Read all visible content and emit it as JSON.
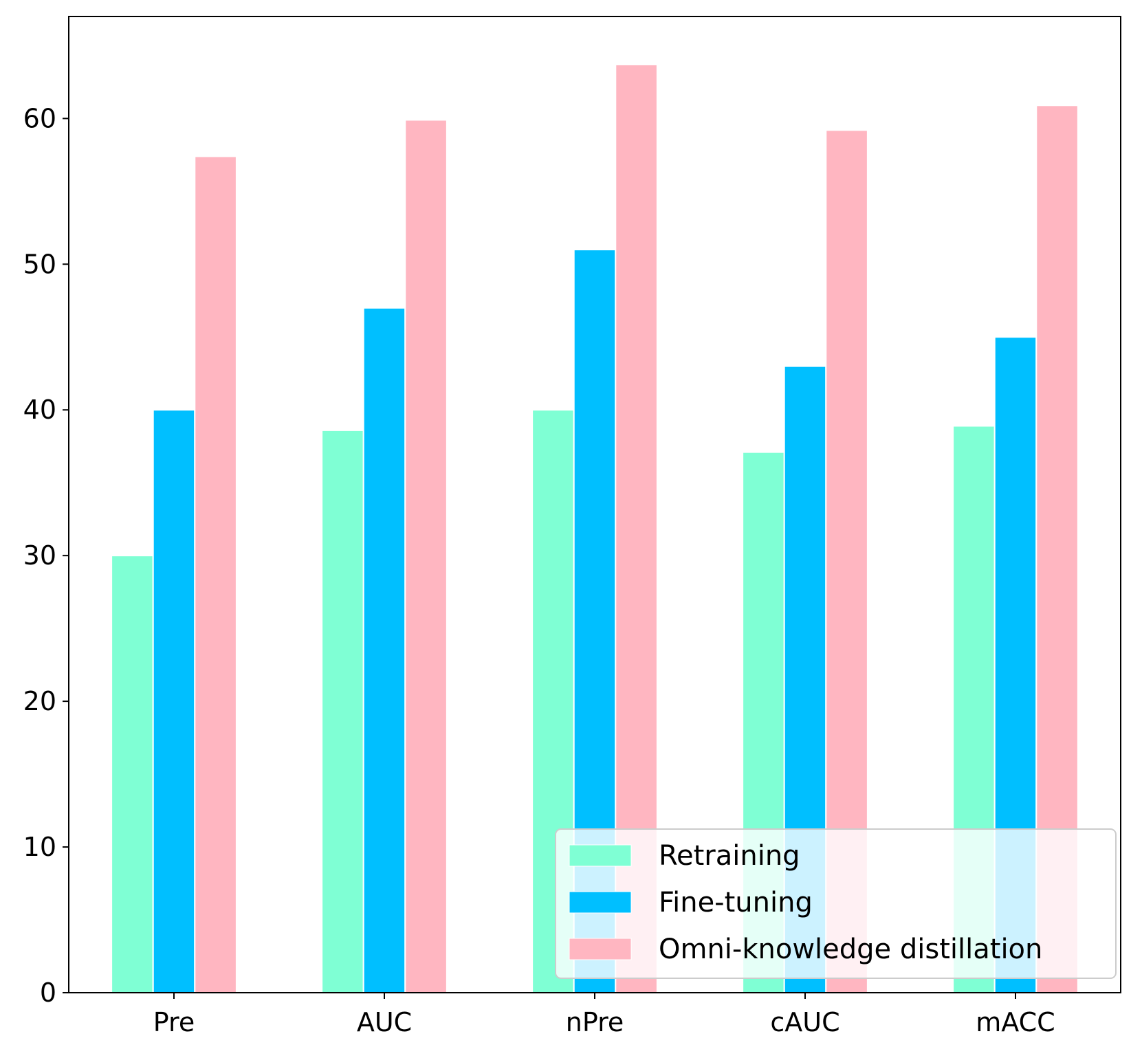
{
  "chart_data": {
    "type": "bar",
    "title": "",
    "xlabel": "",
    "ylabel": "",
    "categories": [
      "Pre",
      "AUC",
      "nPre",
      "cAUC",
      "mACC"
    ],
    "series": [
      {
        "name": "Retraining",
        "color": "#7fffd4",
        "values": [
          30.0,
          38.6,
          40.0,
          37.1,
          38.9
        ]
      },
      {
        "name": "Fine-tuning",
        "color": "#00bfff",
        "values": [
          40.0,
          47.0,
          51.0,
          43.0,
          45.0
        ]
      },
      {
        "name": "Omni-knowledge distillation",
        "color": "#ffb6c1",
        "values": [
          57.4,
          59.9,
          63.7,
          59.2,
          60.9
        ]
      }
    ],
    "ylim": [
      0,
      67
    ],
    "yticks": [
      0,
      10,
      20,
      30,
      40,
      50,
      60
    ],
    "grid": false,
    "legend_position": "lower-right"
  }
}
